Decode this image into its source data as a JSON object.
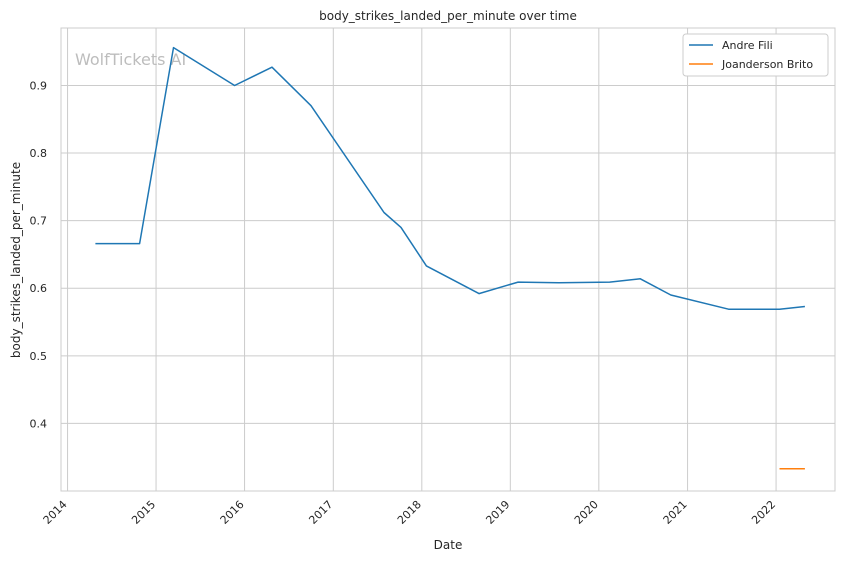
{
  "chart_data": {
    "type": "line",
    "title": "body_strikes_landed_per_minute over time",
    "xlabel": "Date",
    "ylabel": "body_strikes_landed_per_minute",
    "watermark": "WolfTickets AI",
    "x_range": [
      "2013-12-05",
      "2022-09-01"
    ],
    "ylim": [
      0.3,
      0.985
    ],
    "x_ticks": [
      "2014",
      "2015",
      "2016",
      "2017",
      "2018",
      "2019",
      "2020",
      "2021",
      "2022"
    ],
    "y_ticks": [
      0.4,
      0.5,
      0.6,
      0.7,
      0.8,
      0.9
    ],
    "grid": true,
    "legend": "top-right",
    "series": [
      {
        "name": "Andre Fili",
        "color": "#1f77b4",
        "points": [
          [
            "2014-04-26",
            0.666
          ],
          [
            "2014-10-25",
            0.666
          ],
          [
            "2015-03-14",
            0.956
          ],
          [
            "2015-11-21",
            0.9
          ],
          [
            "2016-04-23",
            0.927
          ],
          [
            "2016-10-01",
            0.87
          ],
          [
            "2017-07-29",
            0.712
          ],
          [
            "2017-10-07",
            0.69
          ],
          [
            "2018-01-20",
            0.633
          ],
          [
            "2018-08-25",
            0.592
          ],
          [
            "2019-02-02",
            0.609
          ],
          [
            "2019-07-20",
            0.608
          ],
          [
            "2020-02-15",
            0.609
          ],
          [
            "2020-06-20",
            0.614
          ],
          [
            "2020-10-24",
            0.59
          ],
          [
            "2021-06-19",
            0.569
          ],
          [
            "2022-01-15",
            0.569
          ],
          [
            "2022-04-30",
            0.573
          ]
        ]
      },
      {
        "name": "Joanderson Brito",
        "color": "#ff7f0e",
        "points": [
          [
            "2022-01-15",
            0.333
          ],
          [
            "2022-04-30",
            0.333
          ]
        ]
      }
    ]
  }
}
